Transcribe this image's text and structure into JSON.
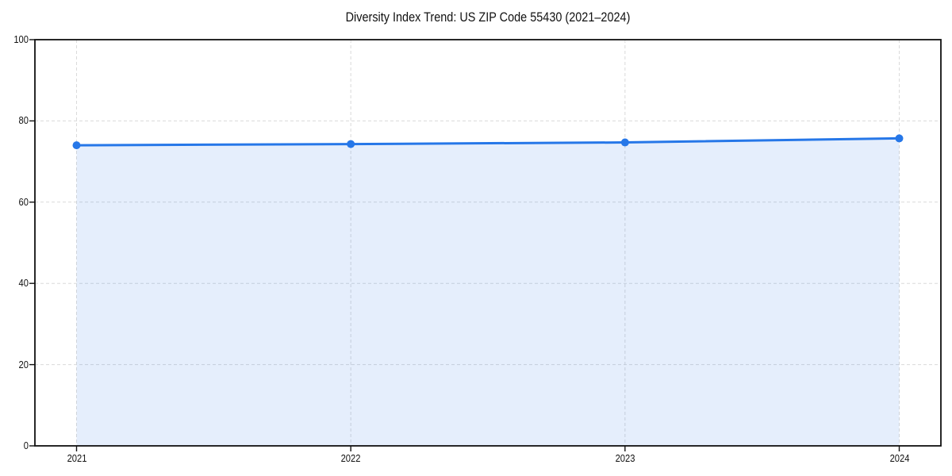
{
  "chart_data": {
    "type": "area",
    "title": "Diversity Index Trend: US ZIP Code 55430 (2021–2024)",
    "categories": [
      "2021",
      "2022",
      "2023",
      "2024"
    ],
    "values": [
      74,
      74.3,
      74.7,
      75.7
    ],
    "xlabel": "",
    "ylabel": "",
    "ylim": [
      0,
      100
    ],
    "yticks": [
      0,
      20,
      40,
      60,
      80,
      100
    ],
    "grid": true,
    "grid_style": "dashed",
    "legend": "none",
    "line_color": "#2677e8",
    "marker_color": "#2677e8",
    "fill_color": "rgba(38,119,232,0.12)",
    "grid_color": "#dadada",
    "spine_color": "#111111",
    "background_color": "#ffffff"
  }
}
